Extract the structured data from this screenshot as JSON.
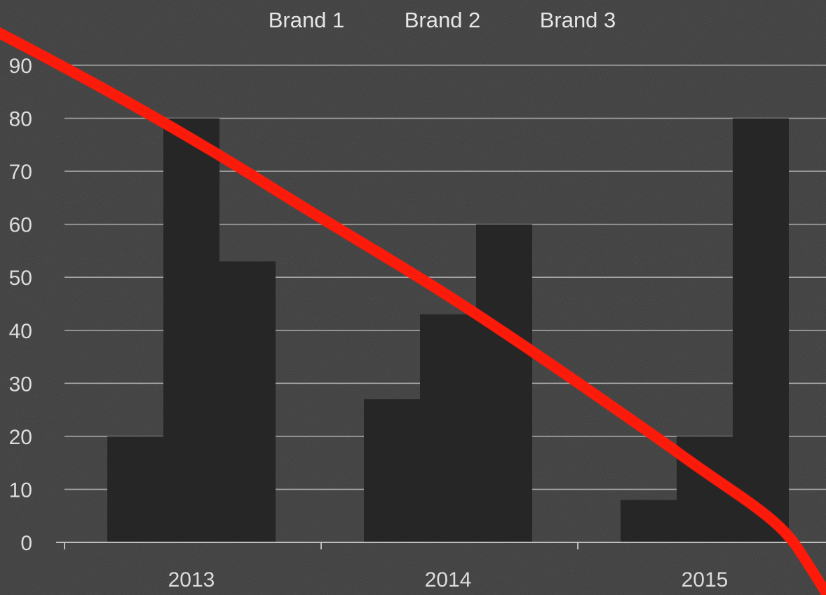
{
  "chart_data": {
    "type": "bar",
    "categories": [
      "2013",
      "2014",
      "2015"
    ],
    "series": [
      {
        "name": "Brand 1",
        "values": [
          20,
          27,
          8
        ]
      },
      {
        "name": "Brand 2",
        "values": [
          80,
          43,
          20
        ]
      },
      {
        "name": "Brand 3",
        "values": [
          53,
          60,
          80
        ]
      }
    ],
    "ylim": [
      0,
      90
    ],
    "yticks": [
      "0",
      "10",
      "20",
      "30",
      "40",
      "50",
      "60",
      "70",
      "80",
      "90"
    ],
    "grid": true,
    "legend_position": "top",
    "overlay": {
      "type": "hand-drawn downward trend line",
      "color": "#ff1a0a"
    },
    "colors": {
      "background": "#3a3a3a",
      "bar": "#262626",
      "grid": "#bdbdbd",
      "text": "#dcdcdc"
    }
  }
}
